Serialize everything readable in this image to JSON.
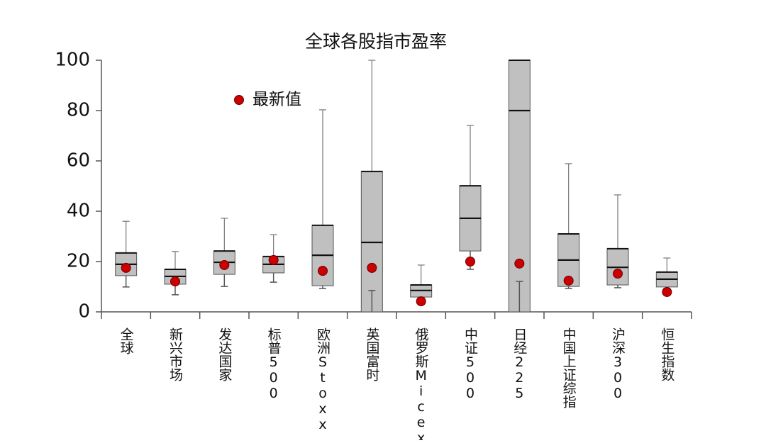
{
  "chart_data": {
    "type": "box",
    "title": "全球各股指市盈率",
    "categories": [
      "全球",
      "新兴市场",
      "发达国家",
      "标普500",
      "欧洲Stoxx",
      "英国富时",
      "俄罗斯Micex",
      "中证500",
      "日经225",
      "中国上证综指",
      "沪深300",
      "恒生指数"
    ],
    "boxes": {
      "color": "#c0c0c0",
      "high": [
        36,
        24,
        37.2,
        30.7,
        80.3,
        100,
        18.6,
        74.1,
        100,
        58.9,
        46.5,
        21.4
      ],
      "q3": [
        23.4,
        16.9,
        24.2,
        22,
        34.4,
        55.8,
        10.7,
        50.1,
        100,
        31,
        25.1,
        15.8
      ],
      "median": [
        18.9,
        14.1,
        19.7,
        18.9,
        22.5,
        27.6,
        8.5,
        37.2,
        80,
        20.6,
        17.7,
        13
      ],
      "q1": [
        14.4,
        11,
        14.9,
        15.5,
        10.4,
        0,
        5.9,
        24.2,
        0,
        10.1,
        10.7,
        9.9
      ],
      "low": [
        9.9,
        6.8,
        10.1,
        11.8,
        9.3,
        8.5,
        5.6,
        16.9,
        12.1,
        9.3,
        9.6,
        9.3
      ]
    },
    "latest": {
      "name": "最新值",
      "color": "#cc0000",
      "values": [
        17.5,
        12.1,
        18.6,
        20.6,
        16.3,
        17.5,
        4.2,
        20,
        19.2,
        12.4,
        15.2,
        7.9
      ]
    },
    "ylim": [
      0,
      100
    ],
    "yticks": [
      0,
      20,
      40,
      60,
      80,
      100
    ]
  }
}
